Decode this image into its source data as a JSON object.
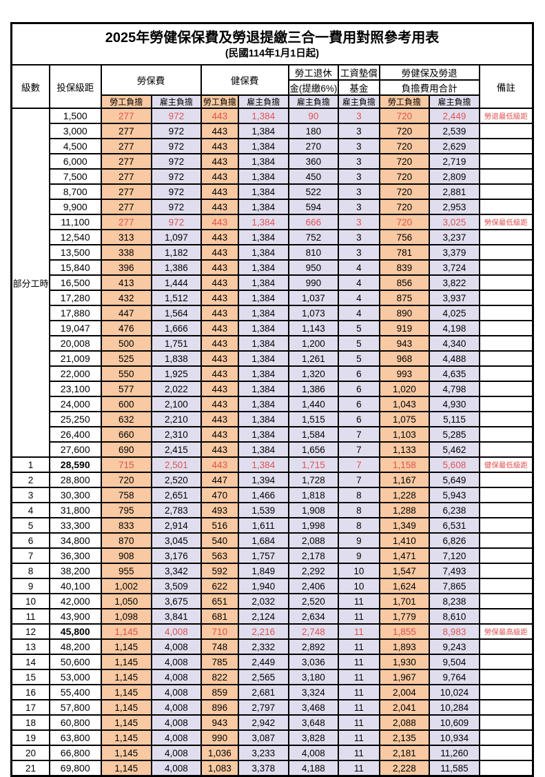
{
  "title": "2025年勞健保保費及勞退提繳三合一費用對照參考用表",
  "subtitle": "(民國114年1月1日起)",
  "colors": {
    "employee_bg": "#F8C9A2",
    "employer_bg": "#E0DEEE",
    "highlight_text": "#E05252",
    "border": "#000000"
  },
  "table": {
    "header": {
      "level": "級數",
      "salary_bracket": "投保級距",
      "labor_insurance": "勞保費",
      "health_insurance": "健保費",
      "pension_line1": "勞工退休",
      "pension_line2": "金(提繳6%)",
      "wage_fund_line1": "工資墊償",
      "wage_fund_line2": "基金",
      "total_line1": "勞健保及勞退",
      "total_line2": "負擔費用合計",
      "note": "備註",
      "employee_share": "勞工負擔",
      "employer_share": "雇主負擔"
    },
    "part_time_label": "部分工時",
    "part_time_rowspan": 23,
    "rows": [
      {
        "level": "",
        "salary": "1,500",
        "values": [
          "277",
          "972",
          "443",
          "1,384",
          "90",
          "3",
          "720",
          "2,449"
        ],
        "note": "勞退最低級距",
        "highlight": true
      },
      {
        "level": "",
        "salary": "3,000",
        "values": [
          "277",
          "972",
          "443",
          "1,384",
          "180",
          "3",
          "720",
          "2,539"
        ],
        "note": ""
      },
      {
        "level": "",
        "salary": "4,500",
        "values": [
          "277",
          "972",
          "443",
          "1,384",
          "270",
          "3",
          "720",
          "2,629"
        ],
        "note": ""
      },
      {
        "level": "",
        "salary": "6,000",
        "values": [
          "277",
          "972",
          "443",
          "1,384",
          "360",
          "3",
          "720",
          "2,719"
        ],
        "note": ""
      },
      {
        "level": "",
        "salary": "7,500",
        "values": [
          "277",
          "972",
          "443",
          "1,384",
          "450",
          "3",
          "720",
          "2,809"
        ],
        "note": ""
      },
      {
        "level": "",
        "salary": "8,700",
        "values": [
          "277",
          "972",
          "443",
          "1,384",
          "522",
          "3",
          "720",
          "2,881"
        ],
        "note": ""
      },
      {
        "level": "",
        "salary": "9,900",
        "values": [
          "277",
          "972",
          "443",
          "1,384",
          "594",
          "3",
          "720",
          "2,953"
        ],
        "note": ""
      },
      {
        "level": "",
        "salary": "11,100",
        "values": [
          "277",
          "972",
          "443",
          "1,384",
          "666",
          "3",
          "720",
          "3,025"
        ],
        "note": "勞保最低級距",
        "highlight": true
      },
      {
        "level": "",
        "salary": "12,540",
        "values": [
          "313",
          "1,097",
          "443",
          "1,384",
          "752",
          "3",
          "756",
          "3,237"
        ],
        "note": ""
      },
      {
        "level": "",
        "salary": "13,500",
        "values": [
          "338",
          "1,182",
          "443",
          "1,384",
          "810",
          "3",
          "781",
          "3,379"
        ],
        "note": ""
      },
      {
        "level": "",
        "salary": "15,840",
        "values": [
          "396",
          "1,386",
          "443",
          "1,384",
          "950",
          "4",
          "839",
          "3,724"
        ],
        "note": ""
      },
      {
        "level": "",
        "salary": "16,500",
        "values": [
          "413",
          "1,444",
          "443",
          "1,384",
          "990",
          "4",
          "856",
          "3,822"
        ],
        "note": ""
      },
      {
        "level": "",
        "salary": "17,280",
        "values": [
          "432",
          "1,512",
          "443",
          "1,384",
          "1,037",
          "4",
          "875",
          "3,937"
        ],
        "note": ""
      },
      {
        "level": "",
        "salary": "17,880",
        "values": [
          "447",
          "1,564",
          "443",
          "1,384",
          "1,073",
          "4",
          "890",
          "4,025"
        ],
        "note": ""
      },
      {
        "level": "",
        "salary": "19,047",
        "values": [
          "476",
          "1,666",
          "443",
          "1,384",
          "1,143",
          "5",
          "919",
          "4,198"
        ],
        "note": ""
      },
      {
        "level": "",
        "salary": "20,008",
        "values": [
          "500",
          "1,751",
          "443",
          "1,384",
          "1,200",
          "5",
          "943",
          "4,340"
        ],
        "note": ""
      },
      {
        "level": "",
        "salary": "21,009",
        "values": [
          "525",
          "1,838",
          "443",
          "1,384",
          "1,261",
          "5",
          "968",
          "4,488"
        ],
        "note": ""
      },
      {
        "level": "",
        "salary": "22,000",
        "values": [
          "550",
          "1,925",
          "443",
          "1,384",
          "1,320",
          "6",
          "993",
          "4,635"
        ],
        "note": ""
      },
      {
        "level": "",
        "salary": "23,100",
        "values": [
          "577",
          "2,022",
          "443",
          "1,384",
          "1,386",
          "6",
          "1,020",
          "4,798"
        ],
        "note": ""
      },
      {
        "level": "",
        "salary": "24,000",
        "values": [
          "600",
          "2,100",
          "443",
          "1,384",
          "1,440",
          "6",
          "1,043",
          "4,930"
        ],
        "note": ""
      },
      {
        "level": "",
        "salary": "25,250",
        "values": [
          "632",
          "2,210",
          "443",
          "1,384",
          "1,515",
          "6",
          "1,075",
          "5,115"
        ],
        "note": ""
      },
      {
        "level": "",
        "salary": "26,400",
        "values": [
          "660",
          "2,310",
          "443",
          "1,384",
          "1,584",
          "7",
          "1,103",
          "5,285"
        ],
        "note": ""
      },
      {
        "level": "",
        "salary": "27,600",
        "values": [
          "690",
          "2,415",
          "443",
          "1,384",
          "1,656",
          "7",
          "1,133",
          "5,462"
        ],
        "note": ""
      },
      {
        "level": "1",
        "salary": "28,590",
        "values": [
          "715",
          "2,501",
          "443",
          "1,384",
          "1,715",
          "7",
          "1,158",
          "5,608"
        ],
        "note": "健保最低級距",
        "highlight": true,
        "bold": true
      },
      {
        "level": "2",
        "salary": "28,800",
        "values": [
          "720",
          "2,520",
          "447",
          "1,394",
          "1,728",
          "7",
          "1,167",
          "5,649"
        ],
        "note": ""
      },
      {
        "level": "3",
        "salary": "30,300",
        "values": [
          "758",
          "2,651",
          "470",
          "1,466",
          "1,818",
          "8",
          "1,228",
          "5,943"
        ],
        "note": ""
      },
      {
        "level": "4",
        "salary": "31,800",
        "values": [
          "795",
          "2,783",
          "493",
          "1,539",
          "1,908",
          "8",
          "1,288",
          "6,238"
        ],
        "note": ""
      },
      {
        "level": "5",
        "salary": "33,300",
        "values": [
          "833",
          "2,914",
          "516",
          "1,611",
          "1,998",
          "8",
          "1,349",
          "6,531"
        ],
        "note": ""
      },
      {
        "level": "6",
        "salary": "34,800",
        "values": [
          "870",
          "3,045",
          "540",
          "1,684",
          "2,088",
          "9",
          "1,410",
          "6,826"
        ],
        "note": ""
      },
      {
        "level": "7",
        "salary": "36,300",
        "values": [
          "908",
          "3,176",
          "563",
          "1,757",
          "2,178",
          "9",
          "1,471",
          "7,120"
        ],
        "note": ""
      },
      {
        "level": "8",
        "salary": "38,200",
        "values": [
          "955",
          "3,342",
          "592",
          "1,849",
          "2,292",
          "10",
          "1,547",
          "7,493"
        ],
        "note": ""
      },
      {
        "level": "9",
        "salary": "40,100",
        "values": [
          "1,002",
          "3,509",
          "622",
          "1,940",
          "2,406",
          "10",
          "1,624",
          "7,865"
        ],
        "note": ""
      },
      {
        "level": "10",
        "salary": "42,000",
        "values": [
          "1,050",
          "3,675",
          "651",
          "2,032",
          "2,520",
          "11",
          "1,701",
          "8,238"
        ],
        "note": ""
      },
      {
        "level": "11",
        "salary": "43,900",
        "values": [
          "1,098",
          "3,841",
          "681",
          "2,124",
          "2,634",
          "11",
          "1,779",
          "8,610"
        ],
        "note": ""
      },
      {
        "level": "12",
        "salary": "45,800",
        "values": [
          "1,145",
          "4,008",
          "710",
          "2,216",
          "2,748",
          "11",
          "1,855",
          "8,983"
        ],
        "note": "勞保最高級距",
        "highlight": true,
        "bold": true
      },
      {
        "level": "13",
        "salary": "48,200",
        "values": [
          "1,145",
          "4,008",
          "748",
          "2,332",
          "2,892",
          "11",
          "1,893",
          "9,243"
        ],
        "note": ""
      },
      {
        "level": "14",
        "salary": "50,600",
        "values": [
          "1,145",
          "4,008",
          "785",
          "2,449",
          "3,036",
          "11",
          "1,930",
          "9,504"
        ],
        "note": ""
      },
      {
        "level": "15",
        "salary": "53,000",
        "values": [
          "1,145",
          "4,008",
          "822",
          "2,565",
          "3,180",
          "11",
          "1,967",
          "9,764"
        ],
        "note": ""
      },
      {
        "level": "16",
        "salary": "55,400",
        "values": [
          "1,145",
          "4,008",
          "859",
          "2,681",
          "3,324",
          "11",
          "2,004",
          "10,024"
        ],
        "note": ""
      },
      {
        "level": "17",
        "salary": "57,800",
        "values": [
          "1,145",
          "4,008",
          "896",
          "2,797",
          "3,468",
          "11",
          "2,041",
          "10,284"
        ],
        "note": ""
      },
      {
        "level": "18",
        "salary": "60,800",
        "values": [
          "1,145",
          "4,008",
          "943",
          "2,942",
          "3,648",
          "11",
          "2,088",
          "10,609"
        ],
        "note": ""
      },
      {
        "level": "19",
        "salary": "63,800",
        "values": [
          "1,145",
          "4,008",
          "990",
          "3,087",
          "3,828",
          "11",
          "2,135",
          "10,934"
        ],
        "note": ""
      },
      {
        "level": "20",
        "salary": "66,800",
        "values": [
          "1,145",
          "4,008",
          "1,036",
          "3,233",
          "4,008",
          "11",
          "2,181",
          "11,260"
        ],
        "note": ""
      },
      {
        "level": "21",
        "salary": "69,800",
        "values": [
          "1,145",
          "4,008",
          "1,083",
          "3,378",
          "4,188",
          "11",
          "2,228",
          "11,585"
        ],
        "note": ""
      }
    ]
  }
}
